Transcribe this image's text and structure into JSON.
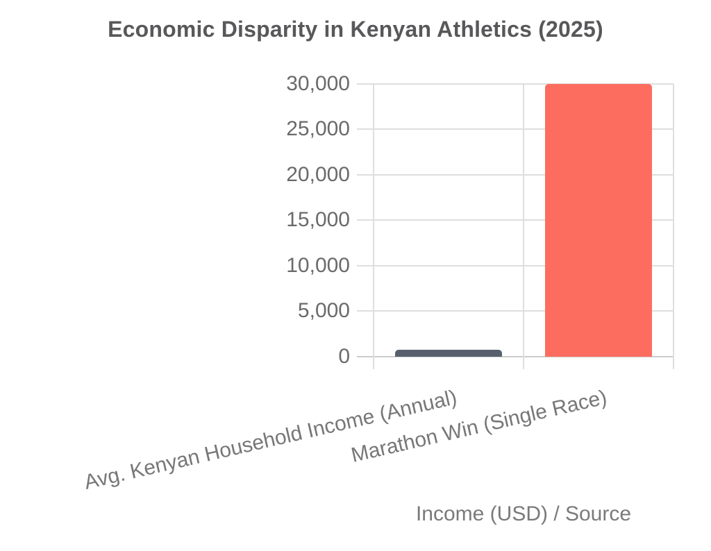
{
  "chart_data": {
    "type": "bar",
    "title": "Economic Disparity in Kenyan Athletics (2025)",
    "categories": [
      "Avg. Kenyan Household Income (Annual)",
      "Marathon Win (Single Race)"
    ],
    "values": [
      750,
      30000
    ],
    "xlabel": "Income (USD) / Source",
    "ylabel": "",
    "ylim": [
      0,
      30000
    ],
    "ytick_step": 5000,
    "ytick_labels": [
      "0",
      "5,000",
      "10,000",
      "15,000",
      "20,000",
      "25,000",
      "30,000"
    ],
    "grid": true,
    "legend": false,
    "bar_colors": [
      "#58606e",
      "#fc6d5f"
    ],
    "colors": {
      "gridline": "#dedede",
      "axis_line": "#cbcbcb",
      "title_text": "#58585a",
      "ytick_text": "#6a6a6a",
      "xtick_text": "#777777",
      "axis_title_text": "#7a7a7a",
      "background": "#ffffff"
    }
  }
}
